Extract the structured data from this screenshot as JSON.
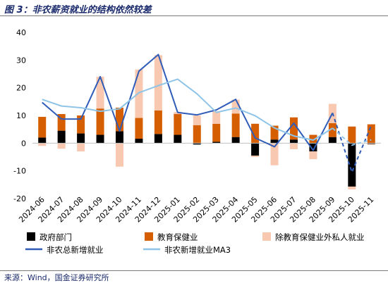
{
  "header": {
    "title": "图 3：非农薪资就业的结构依然较差"
  },
  "footer": {
    "source": "来源：Wind，国金证券研究所"
  },
  "colors": {
    "government": "#000000",
    "education_health": "#d55e00",
    "other_private": "#f8c9b0",
    "nfp_total": "#2f5cb8",
    "nfp_ma3": "#8ec4e8"
  },
  "chart_data": {
    "type": "bar",
    "stacked": true,
    "categories": [
      "2024-06",
      "2024-07",
      "2024-08",
      "2024-09",
      "2024-10",
      "2024-11",
      "2024-12",
      "2025-01",
      "2025-02",
      "2025-03",
      "2025-04",
      "2025-05",
      "2025-06",
      "2025-07",
      "2025-08",
      "2025-09",
      "2025-10",
      "2025-11"
    ],
    "ylim": [
      -20,
      40
    ],
    "yticks": [
      -20,
      -10,
      0,
      10,
      20,
      30,
      40
    ],
    "series": [
      {
        "name": "政府部门",
        "kind": "bar",
        "color_key": "government",
        "values": [
          2,
          4.5,
          3.5,
          3,
          4.3,
          1.6,
          3.3,
          3,
          -0.5,
          0.5,
          2.2,
          -4.5,
          1.3,
          1.3,
          -3,
          2.2,
          -15.7,
          -0.3
        ]
      },
      {
        "name": "教育保健业",
        "kind": "bar",
        "color_key": "education_health",
        "values": [
          7.5,
          6,
          6.5,
          9.5,
          8.5,
          7.5,
          8.5,
          7.5,
          6.5,
          6.5,
          8.5,
          7,
          5,
          8,
          3,
          5,
          6,
          6.8
        ]
      },
      {
        "name": "除教育保健业外私人就业",
        "kind": "bar",
        "color_key": "other_private",
        "values": [
          -1,
          -2,
          -3,
          11.5,
          -8.5,
          17.5,
          20,
          0.7,
          3.5,
          4.5,
          5,
          -0.5,
          -8,
          -2.2,
          -2.8,
          7,
          -1,
          -0.3
        ]
      },
      {
        "name": "非农总新增就业",
        "kind": "line",
        "color_key": "nfp_total",
        "style": "solid",
        "values": [
          14.7,
          8.7,
          8.7,
          24,
          4.4,
          26,
          32,
          11.1,
          10.2,
          12,
          15.8,
          1.9,
          -1.3,
          7.2,
          -2.6,
          10.9,
          -10.5,
          6.4
        ]
      },
      {
        "name": "非农新增就业MA3",
        "kind": "line",
        "color_key": "nfp_ma3",
        "style": "solid",
        "values": [
          15.8,
          13.4,
          12.8,
          11.5,
          12.4,
          18.2,
          20.8,
          23.1,
          17.8,
          11.1,
          12.7,
          9.9,
          5.5,
          2.6,
          1.1,
          5.4,
          -0.7,
          1.2
        ]
      }
    ],
    "dashed_tail": {
      "series": [
        "非农总新增就业",
        "非农新增就业MA3"
      ],
      "from_index": 15
    },
    "legend": {
      "position": "bottom",
      "items": [
        {
          "label": "政府部门",
          "marker": "box",
          "color_key": "government"
        },
        {
          "label": "教育保健业",
          "marker": "box",
          "color_key": "education_health"
        },
        {
          "label": "除教育保健业外私人就业",
          "marker": "box",
          "color_key": "other_private"
        },
        {
          "label": "非农总新增就业",
          "marker": "line",
          "color_key": "nfp_total"
        },
        {
          "label": "非农新增就业MA3",
          "marker": "line",
          "color_key": "nfp_ma3"
        }
      ]
    },
    "grid": false
  }
}
